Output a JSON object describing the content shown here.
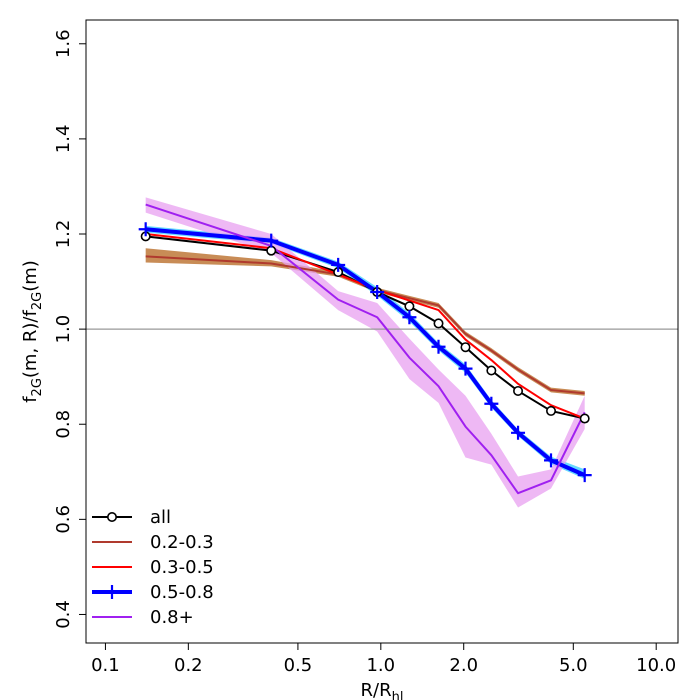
{
  "chart_data": {
    "type": "line",
    "title": "",
    "xlabel_main": "R/R",
    "xlabel_sub": "hl",
    "ylabel_parts": [
      {
        "t": "f",
        "sub": false
      },
      {
        "t": "2G",
        "sub": true
      },
      {
        "t": "(m, R)/f",
        "sub": false
      },
      {
        "t": "2G",
        "sub": true
      },
      {
        "t": "(m)",
        "sub": false
      }
    ],
    "xscale": "log",
    "xlim": [
      0.085,
      12.0
    ],
    "ylim": [
      0.34,
      1.65
    ],
    "xticks": [
      0.1,
      0.2,
      0.5,
      1.0,
      2.0,
      5.0,
      10.0
    ],
    "xtick_labels": [
      "0.1",
      "0.2",
      "0.5",
      "1.0",
      "2.0",
      "5.0",
      "10.0"
    ],
    "yticks": [
      0.4,
      0.6,
      0.8,
      1.0,
      1.2,
      1.4,
      1.6
    ],
    "ytick_labels": [
      "0.4",
      "0.6",
      "0.8",
      "1.0",
      "1.2",
      "1.4",
      "1.6"
    ],
    "reference_line": {
      "y": 1.0,
      "color": "#999999"
    },
    "legend_position": "bottom-left",
    "series": [
      {
        "name": "all",
        "color": "#000000",
        "marker": "circle",
        "linewidth": 2,
        "x": [
          0.14,
          0.4,
          0.7,
          0.97,
          1.27,
          1.62,
          2.03,
          2.52,
          3.15,
          4.15,
          5.5
        ],
        "y": [
          1.195,
          1.165,
          1.12,
          1.078,
          1.048,
          1.012,
          0.962,
          0.913,
          0.87,
          0.828,
          0.812
        ],
        "band_lo": null,
        "band_hi": null,
        "band_color": null
      },
      {
        "name": "0.2-0.3",
        "color": "#b03a2e",
        "marker": "none",
        "linewidth": 2,
        "x": [
          0.14,
          0.4,
          0.7,
          0.97,
          1.27,
          1.62,
          2.03,
          2.52,
          3.15,
          4.15,
          5.5
        ],
        "y": [
          1.153,
          1.138,
          1.115,
          1.082,
          1.065,
          1.05,
          0.99,
          0.955,
          0.915,
          0.872,
          0.865
        ],
        "band_lo": [
          1.14,
          1.132,
          1.11,
          1.077,
          1.06,
          1.045,
          0.985,
          0.95,
          0.91,
          0.867,
          0.86
        ],
        "band_hi": [
          1.17,
          1.145,
          1.12,
          1.087,
          1.07,
          1.055,
          0.995,
          0.96,
          0.92,
          0.877,
          0.87
        ],
        "band_color": "#b5651d"
      },
      {
        "name": "0.3-0.5",
        "color": "#ff0000",
        "marker": "none",
        "linewidth": 2,
        "x": [
          0.14,
          0.4,
          0.7,
          0.97,
          1.27,
          1.62,
          2.03,
          2.52,
          3.15,
          4.15,
          5.5
        ],
        "y": [
          1.2,
          1.17,
          1.115,
          1.082,
          1.06,
          1.04,
          0.978,
          0.935,
          0.885,
          0.84,
          0.812
        ],
        "band_lo": null,
        "band_hi": null,
        "band_color": null
      },
      {
        "name": "0.5-0.8",
        "color": "#0000ff",
        "marker": "plus",
        "linewidth": 4,
        "x": [
          0.14,
          0.4,
          0.7,
          0.97,
          1.27,
          1.62,
          2.03,
          2.52,
          3.15,
          4.15,
          5.5
        ],
        "y": [
          1.21,
          1.186,
          1.135,
          1.078,
          1.025,
          0.963,
          0.917,
          0.843,
          0.782,
          0.724,
          0.693
        ],
        "band_lo": [
          1.203,
          1.18,
          1.128,
          1.07,
          1.016,
          0.955,
          0.908,
          0.835,
          0.775,
          0.716,
          0.685
        ],
        "band_hi": [
          1.217,
          1.192,
          1.142,
          1.088,
          1.034,
          0.971,
          0.926,
          0.851,
          0.789,
          0.732,
          0.705
        ],
        "band_color": "#33ccff"
      },
      {
        "name": "0.8+",
        "color": "#a020f0",
        "marker": "none",
        "linewidth": 2,
        "x": [
          0.14,
          0.4,
          0.7,
          0.97,
          1.27,
          1.62,
          2.03,
          2.52,
          3.15,
          4.15,
          5.5
        ],
        "y": [
          1.262,
          1.175,
          1.062,
          1.025,
          0.94,
          0.88,
          0.795,
          0.735,
          0.655,
          0.682,
          0.825
        ],
        "band_lo": [
          1.245,
          1.16,
          1.04,
          0.995,
          0.895,
          0.845,
          0.73,
          0.715,
          0.625,
          0.665,
          0.79
        ],
        "band_hi": [
          1.277,
          1.2,
          1.08,
          1.055,
          0.98,
          0.915,
          0.86,
          0.78,
          0.69,
          0.705,
          0.86
        ],
        "band_color": "#e8a0f0"
      }
    ]
  }
}
